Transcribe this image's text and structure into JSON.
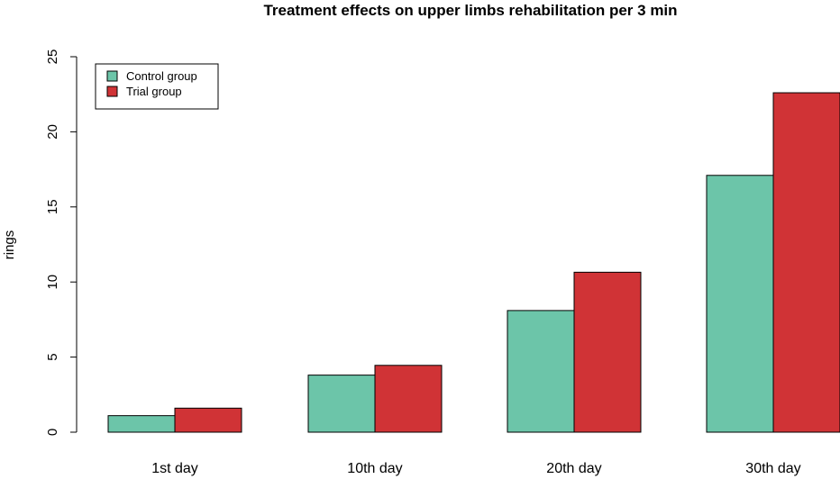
{
  "chart_data": {
    "type": "bar",
    "title": "Treatment effects on upper limbs rehabilitation per 3 min",
    "xlabel": "",
    "ylabel": "rings",
    "categories": [
      "1st day",
      "10th day",
      "20th day",
      "30th day"
    ],
    "series": [
      {
        "name": "Control group",
        "color": "#6cc5a9",
        "values": [
          1.1,
          3.8,
          8.1,
          17.1
        ]
      },
      {
        "name": "Trial group",
        "color": "#d03336",
        "values": [
          1.6,
          4.45,
          10.65,
          22.6
        ]
      }
    ],
    "ylim": [
      0,
      25
    ],
    "yticks": [
      "0",
      "5",
      "10",
      "15",
      "20",
      "25"
    ],
    "grid": false,
    "legend_position": "top-left"
  }
}
